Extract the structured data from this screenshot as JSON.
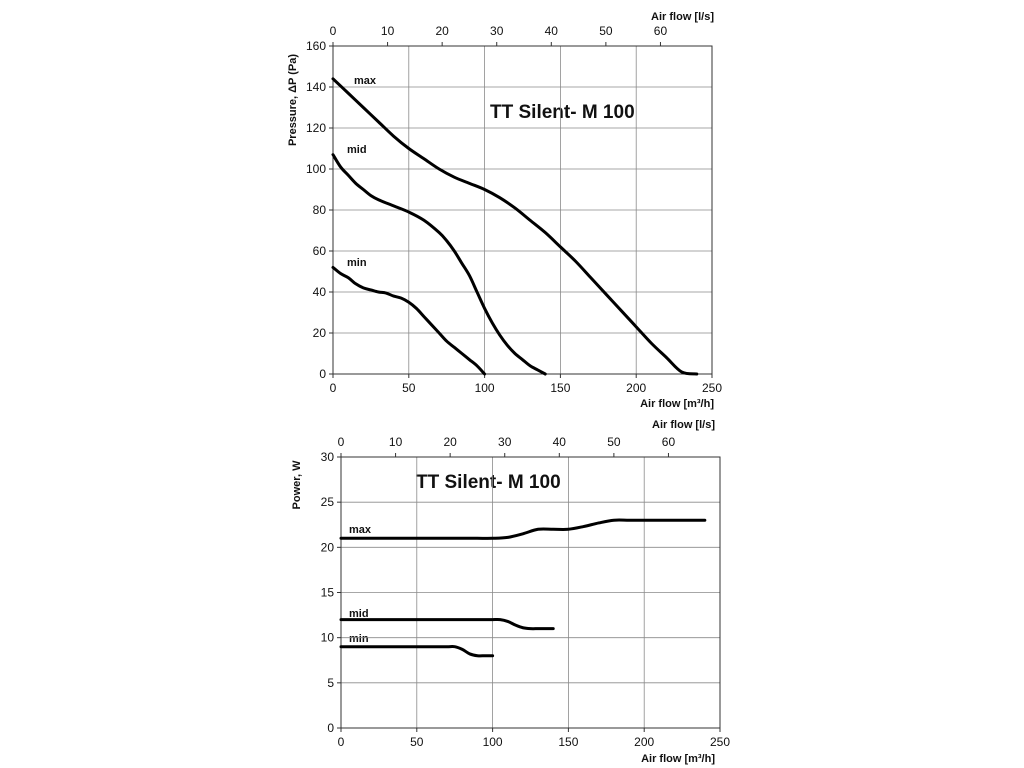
{
  "chart_data": [
    {
      "type": "line",
      "title": "TT Silent- M 100",
      "xlabel": "Air flow [m³/h]",
      "ylabel": "Pressure, ΔP (Pa)",
      "x2label": "Air flow [l/s]",
      "xlim": [
        0,
        250
      ],
      "ylim": [
        0,
        160
      ],
      "x2lim": [
        0,
        69.4444
      ],
      "xticks": [
        0,
        50,
        100,
        150,
        200,
        250
      ],
      "yticks": [
        0,
        20,
        40,
        60,
        80,
        100,
        120,
        140,
        160
      ],
      "x2ticks": [
        0,
        10,
        20,
        30,
        40,
        50,
        60
      ],
      "grid": true,
      "series": [
        {
          "name": "max",
          "x": [
            0,
            10,
            20,
            30,
            40,
            50,
            60,
            70,
            80,
            90,
            100,
            110,
            120,
            130,
            140,
            150,
            160,
            170,
            180,
            190,
            200,
            210,
            220,
            230,
            240
          ],
          "y": [
            144,
            137,
            130,
            123,
            116,
            110,
            105,
            100,
            96,
            93,
            90,
            86,
            81,
            75,
            69,
            62,
            55,
            47,
            39,
            31,
            23,
            15,
            8,
            1,
            0
          ]
        },
        {
          "name": "mid",
          "x": [
            0,
            5,
            10,
            15,
            20,
            25,
            30,
            40,
            50,
            60,
            70,
            75,
            80,
            85,
            90,
            95,
            100,
            105,
            110,
            115,
            120,
            125,
            130,
            135,
            140
          ],
          "y": [
            107,
            101,
            97,
            93,
            90,
            87,
            85,
            82,
            79,
            75,
            69,
            65,
            60,
            54,
            48,
            40,
            32,
            25,
            19,
            14,
            10,
            7,
            4,
            2,
            0
          ]
        },
        {
          "name": "min",
          "x": [
            0,
            5,
            10,
            15,
            20,
            25,
            30,
            35,
            40,
            45,
            50,
            55,
            60,
            65,
            70,
            75,
            80,
            85,
            90,
            95,
            100
          ],
          "y": [
            52,
            49,
            47,
            44,
            42,
            41,
            40,
            39.5,
            38,
            37,
            35,
            32,
            28,
            24,
            20,
            16,
            13,
            10,
            7,
            4,
            0
          ]
        }
      ]
    },
    {
      "type": "line",
      "title": "TT Silent- M 100",
      "xlabel": "Air flow [m³/h]",
      "ylabel": "Power, W",
      "x2label": "Air flow [l/s]",
      "xlim": [
        0,
        250
      ],
      "ylim": [
        0,
        30
      ],
      "x2lim": [
        0,
        69.4444
      ],
      "xticks": [
        0,
        50,
        100,
        150,
        200,
        250
      ],
      "yticks": [
        0,
        5,
        10,
        15,
        20,
        25,
        30
      ],
      "x2ticks": [
        0,
        10,
        20,
        30,
        40,
        50,
        60
      ],
      "grid": true,
      "series": [
        {
          "name": "max",
          "x": [
            0,
            20,
            40,
            60,
            80,
            90,
            100,
            110,
            120,
            130,
            140,
            150,
            160,
            170,
            180,
            190,
            200,
            210,
            220,
            230,
            240
          ],
          "y": [
            21,
            21,
            21,
            21,
            21,
            21,
            21,
            21.1,
            21.5,
            22,
            22,
            22,
            22.3,
            22.7,
            23,
            23,
            23,
            23,
            23,
            23,
            23
          ]
        },
        {
          "name": "mid",
          "x": [
            0,
            20,
            40,
            60,
            80,
            95,
            100,
            105,
            110,
            115,
            120,
            125,
            130,
            135,
            140
          ],
          "y": [
            12,
            12,
            12,
            12,
            12,
            12,
            12,
            12,
            11.8,
            11.4,
            11.1,
            11,
            11,
            11,
            11
          ]
        },
        {
          "name": "min",
          "x": [
            0,
            20,
            40,
            60,
            70,
            75,
            80,
            85,
            90,
            95,
            100
          ],
          "y": [
            9,
            9,
            9,
            9,
            9,
            9,
            8.7,
            8.2,
            8,
            8,
            8
          ]
        }
      ]
    }
  ]
}
